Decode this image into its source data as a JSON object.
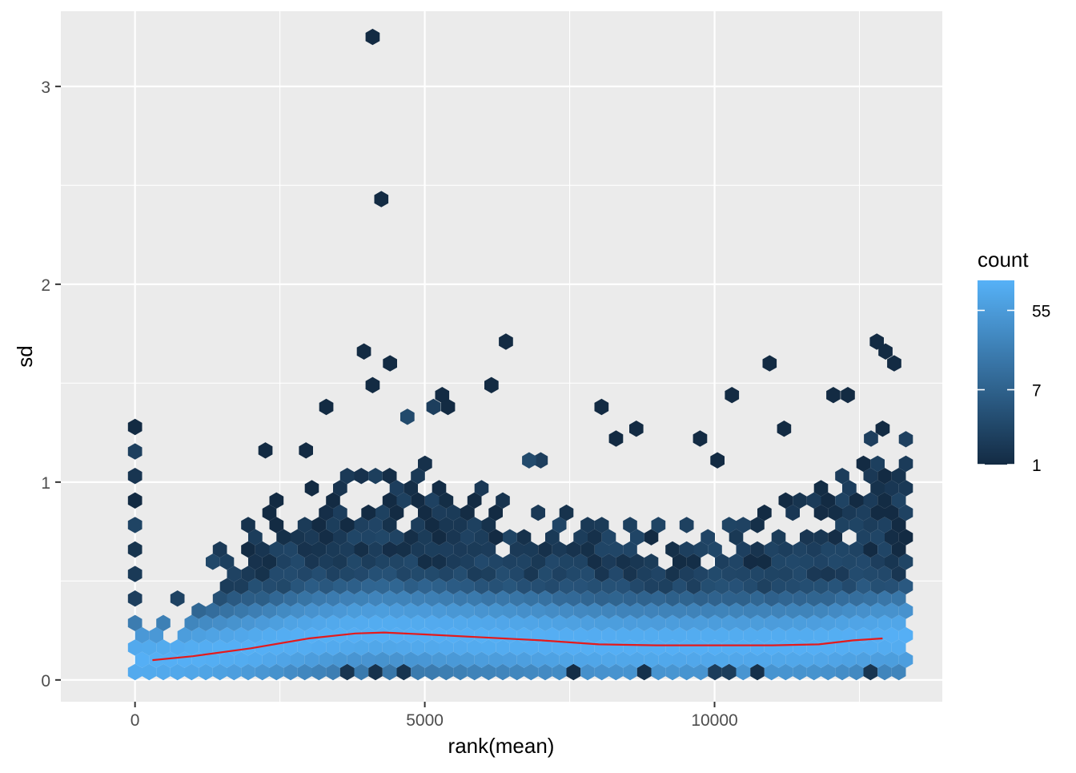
{
  "chart_data": {
    "type": "hexbin",
    "title": "",
    "xlabel": "rank(mean)",
    "ylabel": "sd",
    "xlim": [
      -1280,
      13930
    ],
    "ylim": [
      -0.11,
      3.38
    ],
    "x_ticks": [
      0,
      5000,
      10000
    ],
    "x_tick_labels": [
      "0",
      "5000",
      "10000"
    ],
    "y_ticks": [
      0,
      1,
      2,
      3
    ],
    "y_tick_labels": [
      "0",
      "1",
      "2",
      "3"
    ],
    "grid": true,
    "background": "#EBEBEB",
    "legend": {
      "title": "count",
      "position": "right",
      "scale": "log",
      "breaks": [
        1,
        7,
        55
      ],
      "break_labels": [
        "1",
        "7",
        "55"
      ],
      "min": 1,
      "max": 120,
      "color_low": "#132B43",
      "color_high": "#56B1F7"
    },
    "hex_bins": [
      {
        "x": 4100,
        "y": 3.25,
        "count": 1
      },
      {
        "x": 4250,
        "y": 2.43,
        "count": 1
      },
      {
        "x": 3950,
        "y": 1.66,
        "count": 1
      },
      {
        "x": 4400,
        "y": 1.6,
        "count": 1
      },
      {
        "x": 4100,
        "y": 1.49,
        "count": 1
      },
      {
        "x": 6400,
        "y": 1.71,
        "count": 1
      },
      {
        "x": 6150,
        "y": 1.49,
        "count": 1
      },
      {
        "x": 10950,
        "y": 1.6,
        "count": 1
      },
      {
        "x": 12800,
        "y": 1.71,
        "count": 1
      },
      {
        "x": 12950,
        "y": 1.66,
        "count": 1
      },
      {
        "x": 13100,
        "y": 1.6,
        "count": 1
      },
      {
        "x": 3300,
        "y": 1.38,
        "count": 1
      },
      {
        "x": 5300,
        "y": 1.44,
        "count": 1
      },
      {
        "x": 8050,
        "y": 1.38,
        "count": 1
      },
      {
        "x": 10300,
        "y": 1.44,
        "count": 1
      },
      {
        "x": 12050,
        "y": 1.44,
        "count": 1
      },
      {
        "x": 12300,
        "y": 1.44,
        "count": 1
      },
      {
        "x": 2250,
        "y": 1.16,
        "count": 1
      },
      {
        "x": 2950,
        "y": 1.16,
        "count": 1
      },
      {
        "x": 9750,
        "y": 1.22,
        "count": 1
      },
      {
        "x": 10050,
        "y": 1.11,
        "count": 1
      },
      {
        "x": 8300,
        "y": 1.22,
        "count": 1
      },
      {
        "x": 8650,
        "y": 1.27,
        "count": 1
      },
      {
        "x": 11200,
        "y": 1.27,
        "count": 1
      },
      {
        "x": 4700,
        "y": 1.33,
        "count": 3
      },
      {
        "x": 5150,
        "y": 1.38,
        "count": 2
      },
      {
        "x": 5400,
        "y": 1.38,
        "count": 1
      },
      {
        "x": 12700,
        "y": 1.22,
        "count": 2
      },
      {
        "x": 12900,
        "y": 1.27,
        "count": 1
      },
      {
        "x": 7000,
        "y": 1.11,
        "count": 2
      },
      {
        "x": 6800,
        "y": 1.11,
        "count": 3
      }
    ],
    "hex_region": {
      "x_from": 0,
      "x_to": 13400,
      "lower_sd": 0.04,
      "upper_envelope": [
        [
          0,
          0.14
        ],
        [
          1000,
          0.45
        ],
        [
          2000,
          0.8
        ],
        [
          3000,
          0.95
        ],
        [
          4000,
          1.0
        ],
        [
          5000,
          1.05
        ],
        [
          6000,
          0.95
        ],
        [
          7000,
          0.8
        ],
        [
          8000,
          0.8
        ],
        [
          9000,
          0.75
        ],
        [
          10000,
          0.85
        ],
        [
          11000,
          0.85
        ],
        [
          12000,
          0.95
        ],
        [
          13000,
          1.15
        ],
        [
          13400,
          1.25
        ]
      ]
    },
    "trend_line": {
      "color": "#E41A1C",
      "x": [
        300,
        1000,
        2000,
        3000,
        3800,
        4300,
        5000,
        6000,
        7000,
        8000,
        9000,
        10000,
        11000,
        11800,
        12400,
        12900
      ],
      "y": [
        0.1,
        0.12,
        0.16,
        0.21,
        0.235,
        0.24,
        0.23,
        0.215,
        0.2,
        0.18,
        0.175,
        0.175,
        0.175,
        0.18,
        0.2,
        0.21
      ]
    }
  }
}
